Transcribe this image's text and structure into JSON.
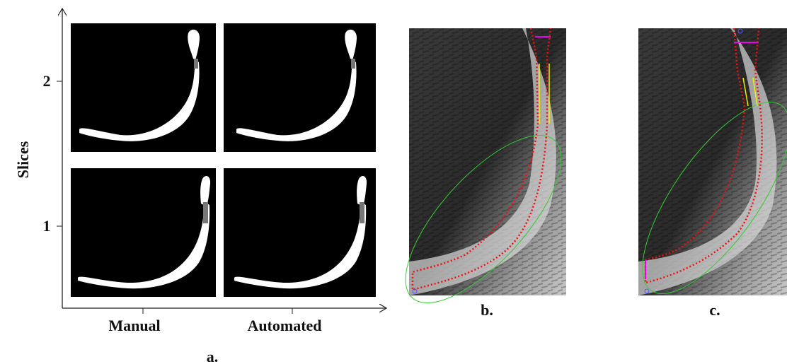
{
  "axis": {
    "y_label": "Slices",
    "y_ticks": [
      "2",
      "1"
    ],
    "x_ticks": [
      "Manual",
      "Automated"
    ]
  },
  "captions": [
    "a.",
    "b.",
    "c."
  ]
}
